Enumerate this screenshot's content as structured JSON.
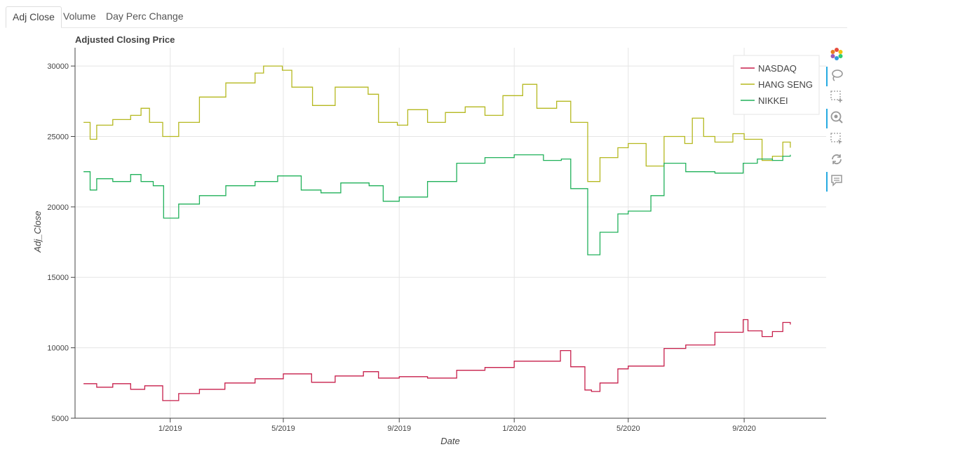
{
  "tabs": [
    {
      "label": "Adj Close",
      "active": true
    },
    {
      "label": "Volume",
      "active": false
    },
    {
      "label": "Day Perc Change",
      "active": false
    }
  ],
  "toolbar": {
    "tools": [
      {
        "name": "bokeh-logo-icon",
        "active": false
      },
      {
        "name": "lasso-select-icon",
        "active": true
      },
      {
        "name": "box-zoom-icon",
        "active": false
      },
      {
        "name": "wheel-zoom-icon",
        "active": true
      },
      {
        "name": "box-select-icon",
        "active": false
      },
      {
        "name": "reset-icon",
        "active": false
      },
      {
        "name": "hover-icon",
        "active": true
      }
    ]
  },
  "chart_data": {
    "type": "line",
    "title": "Adjusted Closing Price",
    "xlabel": "Date",
    "ylabel": "Adj_Close",
    "x_ticks": [
      {
        "date": "2019-01-01",
        "label": "1/2019"
      },
      {
        "date": "2019-05-01",
        "label": "5/2019"
      },
      {
        "date": "2019-09-01",
        "label": "9/2019"
      },
      {
        "date": "2020-01-01",
        "label": "1/2020"
      },
      {
        "date": "2020-05-01",
        "label": "5/2020"
      },
      {
        "date": "2020-09-01",
        "label": "9/2020"
      }
    ],
    "xlim": [
      "2018-09-22",
      "2020-11-27"
    ],
    "y_ticks": [
      5000,
      10000,
      15000,
      20000,
      25000,
      30000
    ],
    "ylim": [
      5000,
      31300
    ],
    "grid": true,
    "legend_position": "top-right",
    "series": [
      {
        "name": "NASDAQ",
        "color": "#c71f4b",
        "points": [
          [
            "2018-10-01",
            7450
          ],
          [
            "2018-10-15",
            7200
          ],
          [
            "2018-11-01",
            7450
          ],
          [
            "2018-11-20",
            7050
          ],
          [
            "2018-12-05",
            7300
          ],
          [
            "2018-12-24",
            6250
          ],
          [
            "2019-01-10",
            6750
          ],
          [
            "2019-02-01",
            7050
          ],
          [
            "2019-02-28",
            7500
          ],
          [
            "2019-04-01",
            7800
          ],
          [
            "2019-05-01",
            8150
          ],
          [
            "2019-05-31",
            7550
          ],
          [
            "2019-06-25",
            8000
          ],
          [
            "2019-07-25",
            8300
          ],
          [
            "2019-08-10",
            7850
          ],
          [
            "2019-09-01",
            7950
          ],
          [
            "2019-10-01",
            7850
          ],
          [
            "2019-11-01",
            8400
          ],
          [
            "2019-12-01",
            8600
          ],
          [
            "2020-01-01",
            9050
          ],
          [
            "2020-02-19",
            9800
          ],
          [
            "2020-03-01",
            8650
          ],
          [
            "2020-03-16",
            7000
          ],
          [
            "2020-03-23",
            6900
          ],
          [
            "2020-04-01",
            7500
          ],
          [
            "2020-04-20",
            8500
          ],
          [
            "2020-05-01",
            8700
          ],
          [
            "2020-06-08",
            9950
          ],
          [
            "2020-07-01",
            10200
          ],
          [
            "2020-08-01",
            11100
          ],
          [
            "2020-08-31",
            12000
          ],
          [
            "2020-09-05",
            11200
          ],
          [
            "2020-09-20",
            10800
          ],
          [
            "2020-10-01",
            11150
          ],
          [
            "2020-10-12",
            11800
          ],
          [
            "2020-10-20",
            11650
          ]
        ]
      },
      {
        "name": "HANG SENG",
        "color": "#b5b81f",
        "points": [
          [
            "2018-10-01",
            26000
          ],
          [
            "2018-10-08",
            24800
          ],
          [
            "2018-10-15",
            25800
          ],
          [
            "2018-11-01",
            26200
          ],
          [
            "2018-11-20",
            26500
          ],
          [
            "2018-12-01",
            27000
          ],
          [
            "2018-12-10",
            26000
          ],
          [
            "2018-12-24",
            25000
          ],
          [
            "2019-01-10",
            26000
          ],
          [
            "2019-02-01",
            27800
          ],
          [
            "2019-03-01",
            28800
          ],
          [
            "2019-04-01",
            29500
          ],
          [
            "2019-04-10",
            30000
          ],
          [
            "2019-04-30",
            29700
          ],
          [
            "2019-05-10",
            28500
          ],
          [
            "2019-06-01",
            27200
          ],
          [
            "2019-06-25",
            28500
          ],
          [
            "2019-07-10",
            28500
          ],
          [
            "2019-07-30",
            28000
          ],
          [
            "2019-08-10",
            26000
          ],
          [
            "2019-08-30",
            25800
          ],
          [
            "2019-09-10",
            26900
          ],
          [
            "2019-10-01",
            26000
          ],
          [
            "2019-10-20",
            26700
          ],
          [
            "2019-11-10",
            27100
          ],
          [
            "2019-12-01",
            26500
          ],
          [
            "2019-12-20",
            27900
          ],
          [
            "2020-01-10",
            28700
          ],
          [
            "2020-01-25",
            27000
          ],
          [
            "2020-02-15",
            27500
          ],
          [
            "2020-03-01",
            26000
          ],
          [
            "2020-03-19",
            21800
          ],
          [
            "2020-04-01",
            23500
          ],
          [
            "2020-04-20",
            24200
          ],
          [
            "2020-05-01",
            24500
          ],
          [
            "2020-05-20",
            22900
          ],
          [
            "2020-06-08",
            25000
          ],
          [
            "2020-06-30",
            24500
          ],
          [
            "2020-07-08",
            26300
          ],
          [
            "2020-07-20",
            25000
          ],
          [
            "2020-08-01",
            24600
          ],
          [
            "2020-08-20",
            25200
          ],
          [
            "2020-09-01",
            24800
          ],
          [
            "2020-09-20",
            23300
          ],
          [
            "2020-10-01",
            23600
          ],
          [
            "2020-10-12",
            24600
          ],
          [
            "2020-10-20",
            24200
          ]
        ]
      },
      {
        "name": "NIKKEI",
        "color": "#20b15a",
        "points": [
          [
            "2018-10-01",
            22500
          ],
          [
            "2018-10-08",
            21200
          ],
          [
            "2018-10-15",
            22000
          ],
          [
            "2018-11-01",
            21800
          ],
          [
            "2018-11-20",
            22300
          ],
          [
            "2018-12-01",
            21800
          ],
          [
            "2018-12-14",
            21500
          ],
          [
            "2018-12-25",
            19200
          ],
          [
            "2019-01-10",
            20200
          ],
          [
            "2019-02-01",
            20800
          ],
          [
            "2019-03-01",
            21500
          ],
          [
            "2019-04-01",
            21800
          ],
          [
            "2019-04-25",
            22200
          ],
          [
            "2019-05-20",
            21200
          ],
          [
            "2019-06-10",
            21000
          ],
          [
            "2019-07-01",
            21700
          ],
          [
            "2019-07-31",
            21500
          ],
          [
            "2019-08-15",
            20400
          ],
          [
            "2019-09-01",
            20700
          ],
          [
            "2019-10-01",
            21800
          ],
          [
            "2019-11-01",
            23100
          ],
          [
            "2019-12-01",
            23500
          ],
          [
            "2020-01-01",
            23700
          ],
          [
            "2020-02-01",
            23300
          ],
          [
            "2020-02-20",
            23400
          ],
          [
            "2020-03-01",
            21300
          ],
          [
            "2020-03-19",
            16600
          ],
          [
            "2020-04-01",
            18200
          ],
          [
            "2020-04-20",
            19500
          ],
          [
            "2020-05-01",
            19700
          ],
          [
            "2020-05-25",
            20800
          ],
          [
            "2020-06-08",
            23100
          ],
          [
            "2020-07-01",
            22500
          ],
          [
            "2020-08-01",
            22400
          ],
          [
            "2020-08-31",
            23100
          ],
          [
            "2020-09-15",
            23400
          ],
          [
            "2020-10-01",
            23300
          ],
          [
            "2020-10-12",
            23600
          ],
          [
            "2020-10-20",
            23700
          ]
        ]
      }
    ]
  }
}
